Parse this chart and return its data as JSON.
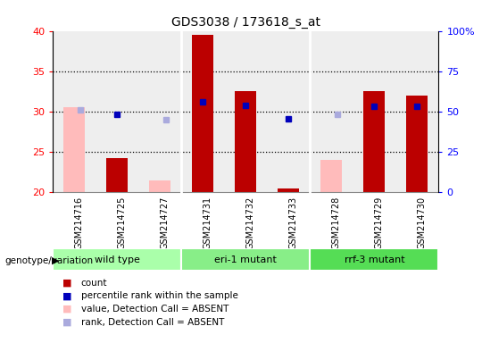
{
  "title": "GDS3038 / 173618_s_at",
  "samples": [
    "GSM214716",
    "GSM214725",
    "GSM214727",
    "GSM214731",
    "GSM214732",
    "GSM214733",
    "GSM214728",
    "GSM214729",
    "GSM214730"
  ],
  "groups": [
    {
      "label": "wild type",
      "indices": [
        0,
        1,
        2
      ],
      "color": "#aaffaa"
    },
    {
      "label": "eri-1 mutant",
      "indices": [
        3,
        4,
        5
      ],
      "color": "#88ee88"
    },
    {
      "label": "rrf-3 mutant",
      "indices": [
        6,
        7,
        8
      ],
      "color": "#55dd55"
    }
  ],
  "ymin": 20,
  "ymax": 40,
  "yticks": [
    20,
    25,
    30,
    35,
    40
  ],
  "right_yticks": [
    0,
    25,
    50,
    75,
    100
  ],
  "right_yticklabels": [
    "0",
    "25",
    "50",
    "75",
    "100%"
  ],
  "dotted_lines": [
    25,
    30,
    35
  ],
  "red_bars": {
    "indices": [
      1,
      3,
      4,
      5,
      7,
      8
    ],
    "values": [
      24.2,
      39.5,
      32.5,
      20.5,
      32.5,
      32.0
    ]
  },
  "pink_bars": {
    "indices": [
      0,
      2,
      6
    ],
    "values": [
      30.5,
      21.5,
      24.0
    ]
  },
  "blue_dots": {
    "indices": [
      1,
      3,
      4,
      5,
      7,
      8
    ],
    "values": [
      29.6,
      31.2,
      30.7,
      29.1,
      30.6,
      30.6
    ]
  },
  "light_blue_marks": {
    "indices": [
      0,
      2,
      6
    ],
    "values": [
      30.2,
      29.0,
      29.6
    ]
  },
  "bar_width": 0.5,
  "background_plot": "#eeeeee",
  "background_label": "#cccccc",
  "red_color": "#bb0000",
  "pink_color": "#ffbbbb",
  "blue_color": "#0000bb",
  "lightblue_color": "#aaaadd",
  "legend_items": [
    {
      "color": "#bb0000",
      "label": "count"
    },
    {
      "color": "#0000bb",
      "label": "percentile rank within the sample"
    },
    {
      "color": "#ffbbbb",
      "label": "value, Detection Call = ABSENT"
    },
    {
      "color": "#aaaadd",
      "label": "rank, Detection Call = ABSENT"
    }
  ]
}
